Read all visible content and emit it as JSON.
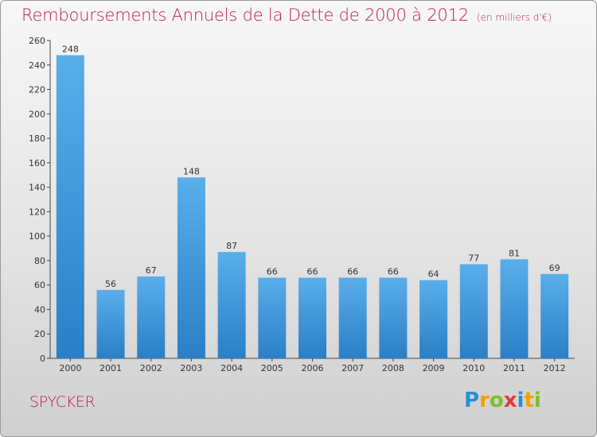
{
  "title": "Remboursements Annuels de la Dette de 2000 à 2012",
  "subtitle": "(en milliers d'€)",
  "place": "SPYCKER",
  "logo": {
    "text": "Proxiti",
    "letters": [
      {
        "ch": "P",
        "color": "#2a8fd6"
      },
      {
        "ch": "r",
        "color": "#f29f05"
      },
      {
        "ch": "o",
        "color": "#7cbf2b"
      },
      {
        "ch": "x",
        "color": "#e53935"
      },
      {
        "ch": "i",
        "color": "#2a8fd6"
      },
      {
        "ch": "t",
        "color": "#f29f05"
      },
      {
        "ch": "i",
        "color": "#7cbf2b"
      }
    ]
  },
  "colors": {
    "bar_top": "#5aaeea",
    "bar_bottom": "#2a7fc6",
    "title": "#c2185b"
  },
  "chart_data": {
    "type": "bar",
    "categories": [
      "2000",
      "2001",
      "2002",
      "2003",
      "2004",
      "2005",
      "2006",
      "2007",
      "2008",
      "2009",
      "2010",
      "2011",
      "2012"
    ],
    "values": [
      248,
      56,
      67,
      148,
      87,
      66,
      66,
      66,
      66,
      64,
      77,
      81,
      69
    ],
    "ylim": [
      0,
      260
    ],
    "yticks": [
      0,
      20,
      40,
      60,
      80,
      100,
      120,
      140,
      160,
      180,
      200,
      220,
      240,
      260
    ],
    "grid": false,
    "legend": "none"
  }
}
